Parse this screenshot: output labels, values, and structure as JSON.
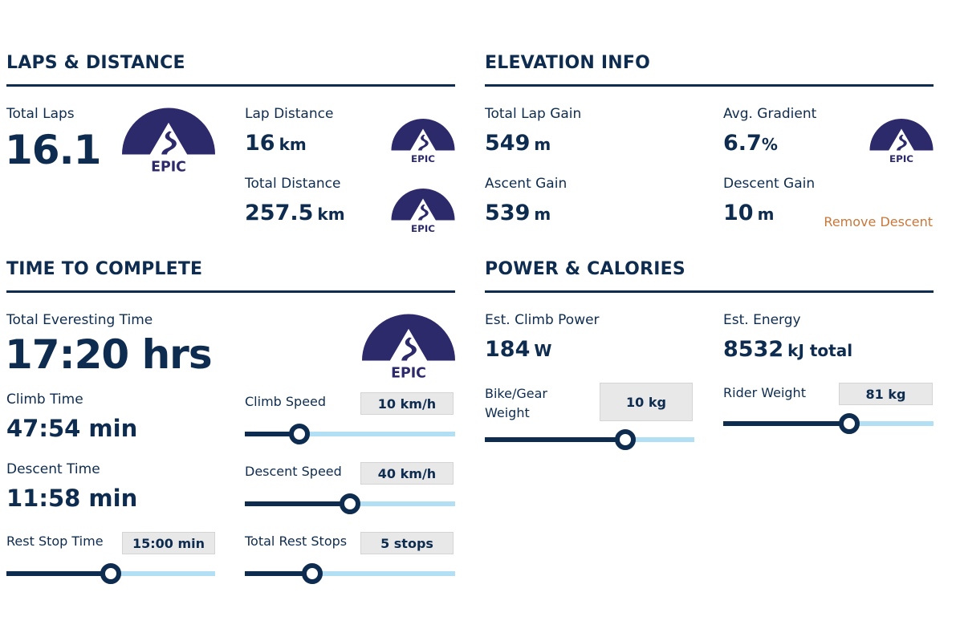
{
  "colors": {
    "primary": "#0e2c4f",
    "logo": "#2c2a6a",
    "track": "#b3dff5",
    "badge_bg": "#e8e8e8",
    "link": "#c8773a"
  },
  "logo": {
    "text": "EPIC",
    "icon": "mountain-road-logo"
  },
  "laps": {
    "title": "LAPS & DISTANCE",
    "total_laps_label": "Total Laps",
    "total_laps_value": "16.1",
    "lap_distance_label": "Lap Distance",
    "lap_distance_value": "16",
    "lap_distance_unit": "km",
    "total_distance_label": "Total Distance",
    "total_distance_value": "257.5",
    "total_distance_unit": "km"
  },
  "elevation": {
    "title": "ELEVATION INFO",
    "total_lap_gain_label": "Total Lap Gain",
    "total_lap_gain_value": "549",
    "total_lap_gain_unit": "m",
    "avg_gradient_label": "Avg. Gradient",
    "avg_gradient_value": "6.7",
    "avg_gradient_unit": "%",
    "ascent_gain_label": "Ascent Gain",
    "ascent_gain_value": "539",
    "ascent_gain_unit": "m",
    "descent_gain_label": "Descent Gain",
    "descent_gain_value": "10",
    "descent_gain_unit": "m",
    "remove_descent_label": "Remove Descent"
  },
  "time": {
    "title": "TIME TO COMPLETE",
    "total_time_label": "Total Everesting Time",
    "total_time_value": "17:20 hrs",
    "climb_time_label": "Climb Time",
    "climb_time_value": "47:54 min",
    "descent_time_label": "Descent Time",
    "descent_time_value": "11:58 min",
    "climb_speed_label": "Climb Speed",
    "climb_speed_value": "10 km/h",
    "climb_speed_fraction": 0.26,
    "descent_speed_label": "Descent Speed",
    "descent_speed_value": "40 km/h",
    "descent_speed_fraction": 0.5,
    "rest_stop_time_label": "Rest Stop Time",
    "rest_stop_time_value": "15:00 min",
    "rest_stop_time_fraction": 0.5,
    "total_rest_stops_label": "Total Rest Stops",
    "total_rest_stops_value": "5 stops",
    "total_rest_stops_fraction": 0.32
  },
  "power": {
    "title": "POWER & CALORIES",
    "climb_power_label": "Est. Climb Power",
    "climb_power_value": "184",
    "climb_power_unit": "W",
    "energy_label": "Est. Energy",
    "energy_value": "8532",
    "energy_unit": "kJ total",
    "bike_weight_label_line1": "Bike/Gear",
    "bike_weight_label_line2": "Weight",
    "bike_weight_value": "10 kg",
    "bike_weight_fraction": 0.67,
    "rider_weight_label": "Rider Weight",
    "rider_weight_value": "81 kg",
    "rider_weight_fraction": 0.6
  }
}
